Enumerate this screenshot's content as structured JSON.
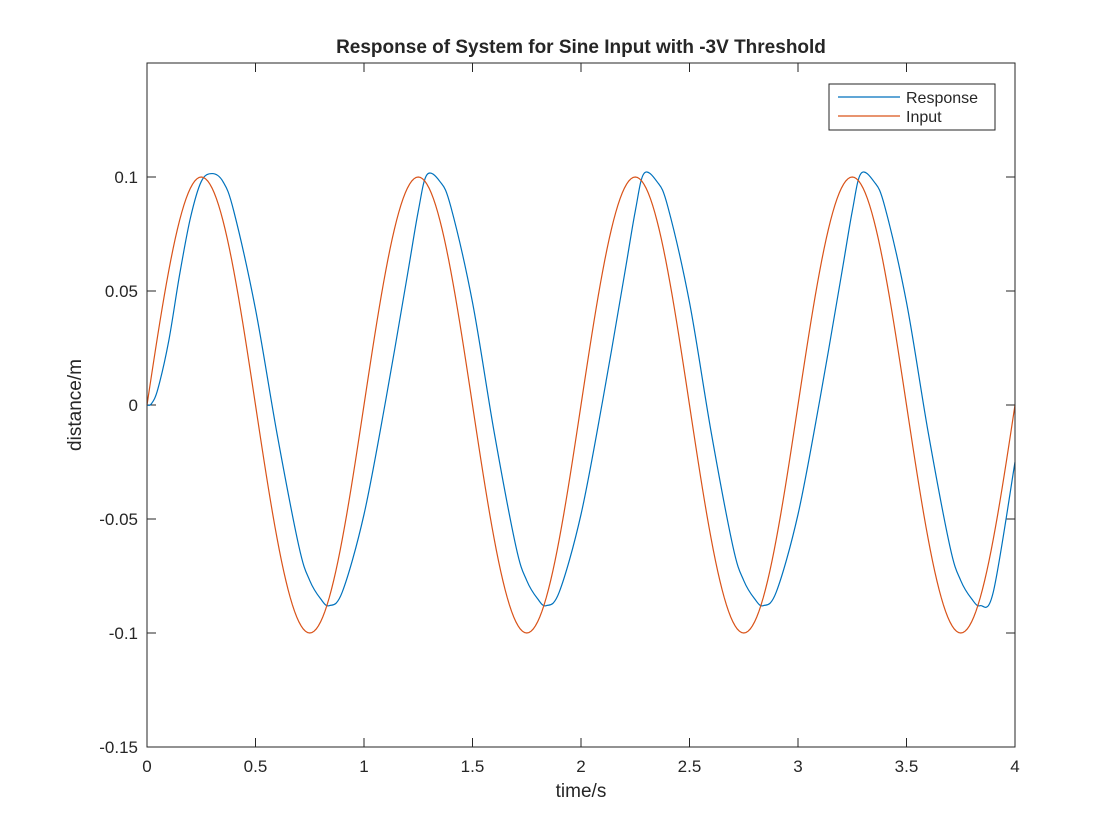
{
  "chart_data": {
    "type": "line",
    "title": "Response of System for Sine Input with -3V Threshold",
    "xlabel": "time/s",
    "ylabel": "distance/m",
    "xlim": [
      0,
      4
    ],
    "ylim": [
      -0.15,
      0.15
    ],
    "x_ticks": [
      "0",
      "0.5",
      "1",
      "1.5",
      "2",
      "2.5",
      "3",
      "3.5",
      "4"
    ],
    "y_ticks": [
      "-0.15",
      "-0.1",
      "-0.05",
      "0",
      "0.05",
      "0.1"
    ],
    "x_tick_values": [
      0,
      0.5,
      1,
      1.5,
      2,
      2.5,
      3,
      3.5,
      4
    ],
    "y_tick_values": [
      -0.15,
      -0.1,
      -0.05,
      0,
      0.05,
      0.1
    ],
    "grid": false,
    "legend": "top-right",
    "colors": {
      "response": "#0072BD",
      "input": "#D95319",
      "axes": "#262626"
    },
    "series": [
      {
        "name": "Response",
        "color": "#0072BD",
        "x": [
          0,
          0.02,
          0.05,
          0.1,
          0.15,
          0.2,
          0.25,
          0.3,
          0.35,
          0.4,
          0.5,
          0.6,
          0.7,
          0.75,
          0.8,
          0.84,
          0.9,
          1.0,
          1.1,
          1.2,
          1.25,
          1.29,
          1.35,
          1.4,
          1.5,
          1.6,
          1.7,
          1.75,
          1.8,
          1.84,
          1.9,
          2.0,
          2.1,
          2.2,
          2.25,
          2.29,
          2.35,
          2.4,
          2.5,
          2.6,
          2.7,
          2.75,
          2.8,
          2.84,
          2.9,
          3.0,
          3.1,
          3.2,
          3.25,
          3.29,
          3.35,
          3.4,
          3.5,
          3.6,
          3.7,
          3.75,
          3.8,
          3.84,
          3.9,
          4.0
        ],
        "values": [
          0,
          0.0005,
          0.007,
          0.028,
          0.057,
          0.082,
          0.098,
          0.1015,
          0.098,
          0.085,
          0.042,
          -0.013,
          -0.062,
          -0.077,
          -0.085,
          -0.088,
          -0.082,
          -0.048,
          0.002,
          0.057,
          0.085,
          0.101,
          0.098,
          0.087,
          0.045,
          -0.012,
          -0.062,
          -0.077,
          -0.085,
          -0.088,
          -0.082,
          -0.048,
          0.002,
          0.057,
          0.085,
          0.1015,
          0.098,
          0.087,
          0.045,
          -0.012,
          -0.062,
          -0.077,
          -0.085,
          -0.088,
          -0.082,
          -0.048,
          0.002,
          0.057,
          0.085,
          0.1015,
          0.098,
          0.087,
          0.045,
          -0.012,
          -0.062,
          -0.077,
          -0.085,
          -0.088,
          -0.082,
          -0.025
        ]
      },
      {
        "name": "Input",
        "color": "#D95319",
        "function": "0.1*sin(2*pi*t)",
        "amplitude": 0.1,
        "frequency_hz": 1,
        "x_range": [
          0,
          4
        ],
        "sample_count": 401
      }
    ]
  }
}
